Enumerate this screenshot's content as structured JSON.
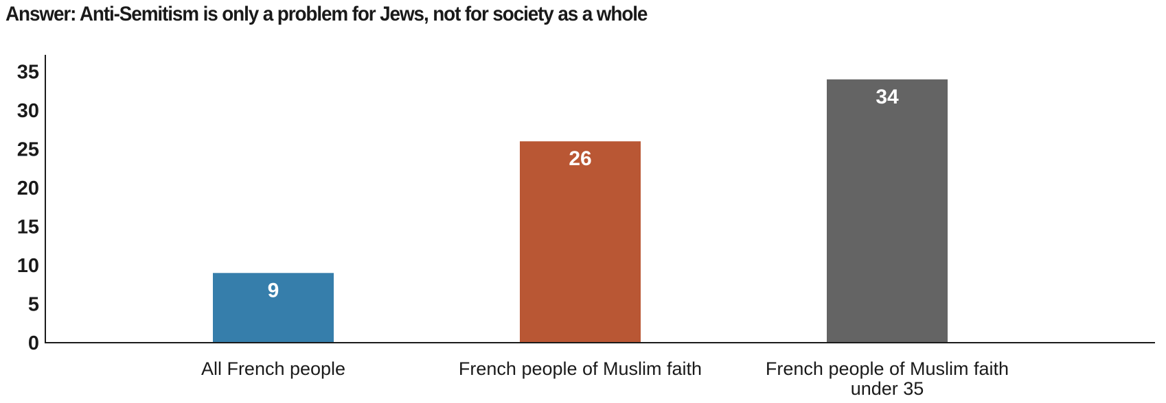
{
  "chart_data": {
    "type": "bar",
    "title": "Answer: Anti-Semitism is only a problem for Jews, not for society as a whole",
    "categories": [
      [
        "All French people"
      ],
      [
        "French people of Muslim faith"
      ],
      [
        "French people of Muslim faith",
        "under 35"
      ]
    ],
    "values": [
      9,
      26,
      34
    ],
    "colors": [
      "#367eab",
      "#b95734",
      "#646464"
    ],
    "yticks": [
      0,
      5,
      10,
      15,
      20,
      25,
      30,
      35
    ],
    "ylim": [
      0,
      36.5
    ],
    "grid": false,
    "legend": "none",
    "data_labels": true
  }
}
